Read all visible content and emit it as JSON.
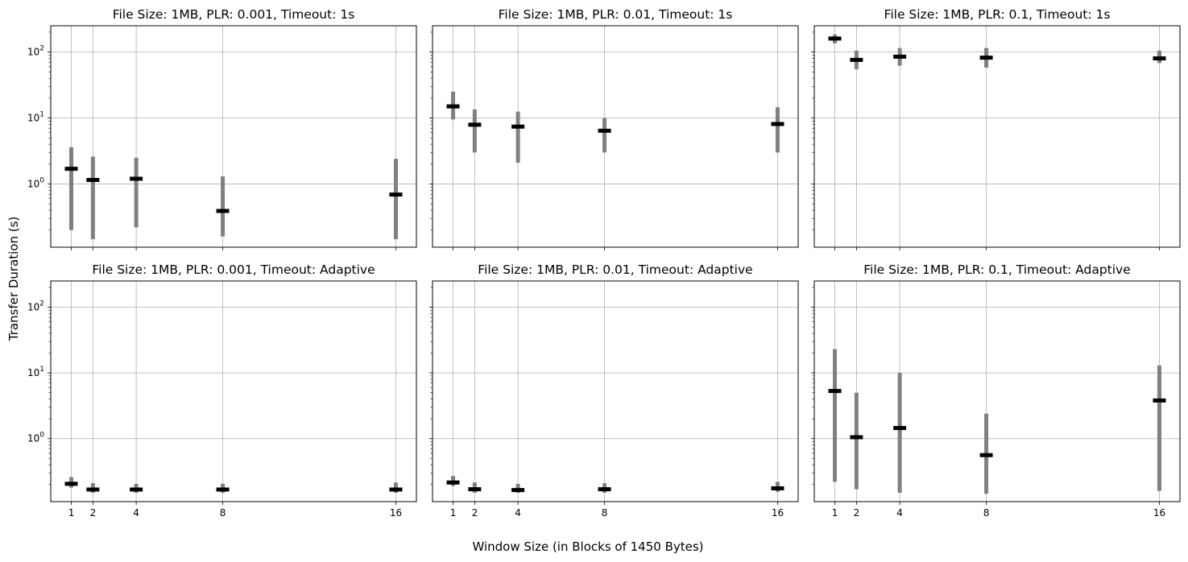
{
  "figure": {
    "xlabel": "Window Size (in Blocks of 1450 Bytes)",
    "ylabel": "Transfer Duration (s)"
  },
  "chart_data": [
    {
      "type": "errorbar",
      "title": "File Size: 1MB, PLR: 0.001, Timeout: 1s",
      "x_scale": "linear",
      "y_scale": "log",
      "xticks": [
        1,
        2,
        4,
        8,
        16
      ],
      "yticks": [
        "10^0",
        "10^1",
        "10^2"
      ],
      "ylim": [
        0.11,
        250
      ],
      "grid": true,
      "x": [
        1,
        2,
        4,
        8,
        16
      ],
      "median": [
        1.7,
        1.15,
        1.2,
        0.39,
        0.69
      ],
      "min": [
        0.2,
        0.145,
        0.22,
        0.16,
        0.145
      ],
      "max": [
        3.6,
        2.6,
        2.5,
        1.3,
        2.4
      ]
    },
    {
      "type": "errorbar",
      "title": "File Size: 1MB, PLR: 0.01, Timeout: 1s",
      "x_scale": "linear",
      "y_scale": "log",
      "xticks": [
        1,
        2,
        4,
        8,
        16
      ],
      "yticks": [
        "10^0",
        "10^1",
        "10^2"
      ],
      "ylim": [
        0.11,
        250
      ],
      "grid": true,
      "x": [
        1,
        2,
        4,
        8,
        16
      ],
      "median": [
        15,
        7.9,
        7.4,
        6.4,
        8.1
      ],
      "min": [
        9.5,
        3.0,
        2.1,
        3.0,
        3.0
      ],
      "max": [
        25,
        13.5,
        12.5,
        10,
        14.5
      ]
    },
    {
      "type": "errorbar",
      "title": "File Size: 1MB, PLR: 0.1, Timeout: 1s",
      "x_scale": "linear",
      "y_scale": "log",
      "xticks": [
        1,
        2,
        4,
        8,
        16
      ],
      "yticks": [
        "10^0",
        "10^1",
        "10^2"
      ],
      "ylim": [
        0.11,
        250
      ],
      "grid": true,
      "x": [
        1,
        2,
        4,
        8,
        16
      ],
      "median": [
        160,
        76,
        85,
        82,
        80
      ],
      "min": [
        135,
        55,
        62,
        58,
        68
      ],
      "max": [
        185,
        105,
        115,
        115,
        105
      ]
    },
    {
      "type": "errorbar",
      "title": "File Size: 1MB, PLR: 0.001, Timeout: Adaptive",
      "x_scale": "linear",
      "y_scale": "log",
      "xticks": [
        1,
        2,
        4,
        8,
        16
      ],
      "yticks": [
        "10^0",
        "10^1",
        "10^2"
      ],
      "ylim": [
        0.11,
        250
      ],
      "grid": true,
      "x": [
        1,
        2,
        4,
        8,
        16
      ],
      "median": [
        0.205,
        0.168,
        0.168,
        0.168,
        0.168
      ],
      "min": [
        0.18,
        0.15,
        0.15,
        0.15,
        0.15
      ],
      "max": [
        0.26,
        0.21,
        0.205,
        0.205,
        0.215
      ]
    },
    {
      "type": "errorbar",
      "title": "File Size: 1MB, PLR: 0.01, Timeout: Adaptive",
      "x_scale": "linear",
      "y_scale": "log",
      "xticks": [
        1,
        2,
        4,
        8,
        16
      ],
      "yticks": [
        "10^0",
        "10^1",
        "10^2"
      ],
      "ylim": [
        0.11,
        250
      ],
      "grid": true,
      "x": [
        1,
        2,
        4,
        8,
        16
      ],
      "median": [
        0.215,
        0.17,
        0.165,
        0.17,
        0.175
      ],
      "min": [
        0.19,
        0.15,
        0.15,
        0.15,
        0.155
      ],
      "max": [
        0.27,
        0.215,
        0.205,
        0.21,
        0.22
      ]
    },
    {
      "type": "errorbar",
      "title": "File Size: 1MB, PLR: 0.1, Timeout: Adaptive",
      "x_scale": "linear",
      "y_scale": "log",
      "xticks": [
        1,
        2,
        4,
        8,
        16
      ],
      "yticks": [
        "10^0",
        "10^1",
        "10^2"
      ],
      "ylim": [
        0.11,
        250
      ],
      "grid": true,
      "x": [
        1,
        2,
        4,
        8,
        16
      ],
      "median": [
        5.3,
        1.05,
        1.45,
        0.56,
        3.8
      ],
      "min": [
        0.22,
        0.17,
        0.15,
        0.145,
        0.16
      ],
      "max": [
        23,
        5.0,
        10,
        2.4,
        13
      ]
    }
  ]
}
